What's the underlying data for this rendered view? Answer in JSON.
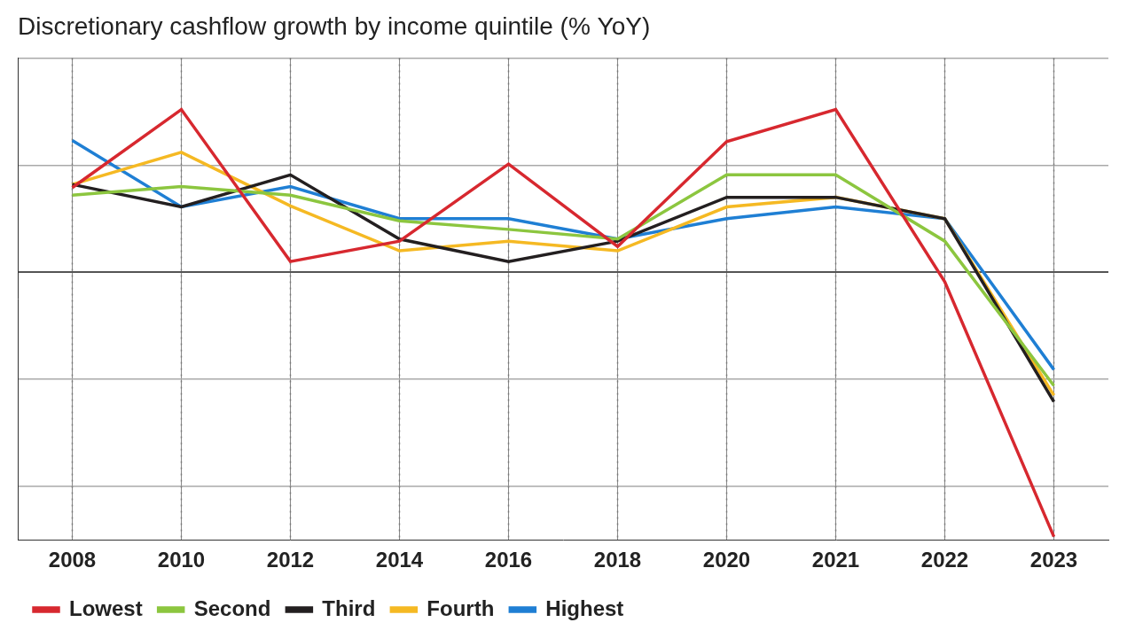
{
  "chart_data": {
    "type": "line",
    "title": "Discretionary cashflow growth by income quintile (% YoY)",
    "categories": [
      "2008",
      "2010",
      "2012",
      "2014",
      "2016",
      "2018",
      "2020",
      "2021",
      "2022",
      "2023"
    ],
    "series": [
      {
        "name": "Lowest",
        "color": "#d7282f",
        "values": [
          7.9,
          15.2,
          1.0,
          2.9,
          10.1,
          2.4,
          12.2,
          15.2,
          -0.9,
          -24.7
        ]
      },
      {
        "name": "Second",
        "color": "#8cc63f",
        "values": [
          7.2,
          8.0,
          7.2,
          4.8,
          4.0,
          3.1,
          9.1,
          9.1,
          2.9,
          -10.6
        ]
      },
      {
        "name": "Third",
        "color": "#231f20",
        "values": [
          8.2,
          6.1,
          9.1,
          3.1,
          1.0,
          2.9,
          7.0,
          7.0,
          5.0,
          -12.1
        ]
      },
      {
        "name": "Fourth",
        "color": "#f5b923",
        "values": [
          8.2,
          11.2,
          6.2,
          2.0,
          2.9,
          2.0,
          6.1,
          7.0,
          5.0,
          -11.5
        ]
      },
      {
        "name": "Highest",
        "color": "#1f7fd4",
        "values": [
          12.3,
          6.1,
          8.0,
          5.0,
          5.0,
          3.1,
          5.0,
          6.1,
          5.0,
          -9.1
        ]
      }
    ],
    "ylim": [
      -25,
      20
    ],
    "yticks": [
      -20,
      -10,
      0,
      10,
      20
    ],
    "grid": true,
    "legend": "bottom left",
    "tick_labels": "x"
  }
}
